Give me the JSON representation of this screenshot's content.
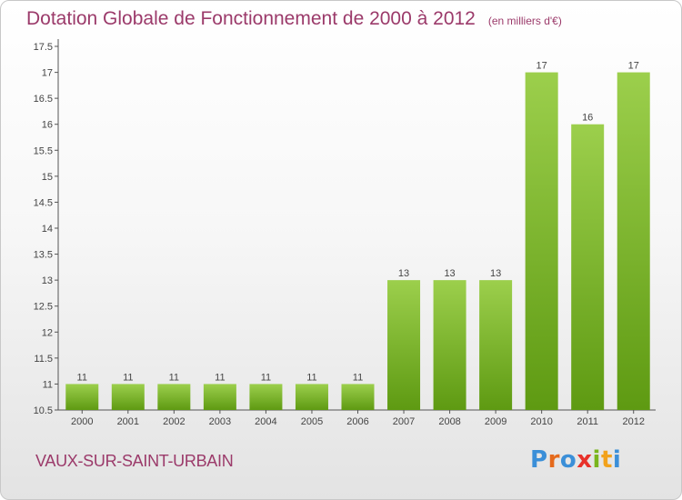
{
  "title": "Dotation Globale de Fonctionnement de 2000 à 2012",
  "subtitle": "(en milliers d'€)",
  "commune": "VAUX-SUR-SAINT-URBAIN",
  "logo": {
    "letters": [
      "P",
      "r",
      "o",
      "x",
      "i",
      "t",
      "i"
    ],
    "colors": [
      "#3b8fd8",
      "#e56a1c",
      "#3b8fd8",
      "#e8312a",
      "#7ab51d",
      "#f2a21c",
      "#3b8fd8"
    ]
  },
  "colors": {
    "bar_top": "#9ccf4c",
    "bar_bottom": "#5e9a12",
    "title": "#9b3a6a"
  },
  "chart_data": {
    "type": "bar",
    "title": "Dotation Globale de Fonctionnement de 2000 à 2012",
    "subtitle": "(en milliers d'€)",
    "categories": [
      "2000",
      "2001",
      "2002",
      "2003",
      "2004",
      "2005",
      "2006",
      "2007",
      "2008",
      "2009",
      "2010",
      "2011",
      "2012"
    ],
    "values": [
      11,
      11,
      11,
      11,
      11,
      11,
      11,
      13,
      13,
      13,
      17,
      16,
      17
    ],
    "ylim": [
      10.5,
      17.5
    ],
    "yticks": [
      "10.5",
      "11",
      "11.5",
      "12",
      "12.5",
      "13",
      "13.5",
      "14",
      "14.5",
      "15",
      "15.5",
      "16",
      "16.5",
      "17",
      "17.5"
    ],
    "grid": false,
    "legend": "none"
  }
}
